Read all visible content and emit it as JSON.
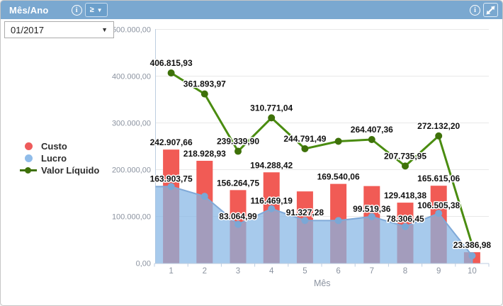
{
  "header": {
    "title": "Mês/Ano",
    "info_glyph": "i",
    "operator_button": {
      "operator": "≥",
      "caret": "▼"
    }
  },
  "filter": {
    "value": "01/2017",
    "caret": "▼"
  },
  "legend": {
    "items": [
      {
        "label": "Custo",
        "color": "#ee5b5b",
        "marker": "circle"
      },
      {
        "label": "Lucro",
        "color": "#90bce9",
        "marker": "circle"
      },
      {
        "label": "Valor Líquido",
        "color": "#3e7109",
        "marker": "line-dot"
      }
    ]
  },
  "colors": {
    "header_bg": "#7aa8d0",
    "bar": "#f15b55",
    "area_fill": "rgba(133,181,228,0.72)",
    "area_stroke": "#7fa9d8",
    "area_dot": "#7aa8d6",
    "line": "#4a8c10",
    "line_dot": "#3e7109",
    "grid": "#e8e8e8",
    "axis": "#bccde0",
    "axis_text": "#8b93a0",
    "label_text": "#111111"
  },
  "chart_data": {
    "type": "bar",
    "subtype": "combo-bar-area-line",
    "categories": [
      "1",
      "2",
      "3",
      "4",
      "5",
      "6",
      "7",
      "8",
      "9",
      "10"
    ],
    "xlabel": "Mês",
    "ylabel": "",
    "ylim": [
      0,
      500000
    ],
    "grid": true,
    "legend_position": "left-middle",
    "y_tick_labels": [
      "0,00",
      "100.000,00",
      "200.000,00",
      "300.000,00",
      "400.000,00",
      "500.000,00"
    ],
    "series": [
      {
        "name": "Custo",
        "type": "bar",
        "values": [
          242907.66,
          218928.93,
          156264.75,
          194288.42,
          153464.21,
          169540.06,
          164888.0,
          129418.38,
          165615.06,
          23386.98
        ],
        "labels": [
          "242.907,66",
          "218.928,93",
          "156.264,75",
          "194.288,42",
          null,
          "169.540,06",
          null,
          "129.418,38",
          "165.615,06",
          "23.386,98"
        ]
      },
      {
        "name": "Lucro",
        "type": "area",
        "values": [
          163903.75,
          142965.04,
          83064.99,
          116469.19,
          91327.28,
          91060.0,
          99519.36,
          78306.45,
          106505.38,
          16000.0
        ],
        "labels": [
          "163.903,75",
          null,
          "83.064,99",
          "116.469,19",
          "91.327,28",
          null,
          "99.519,36",
          "78.306,45",
          "106.505,38",
          null
        ]
      },
      {
        "name": "Valor Líquido",
        "type": "line",
        "values": [
          406815.93,
          361893.97,
          239339.9,
          310771.04,
          244791.49,
          260600.0,
          264407.36,
          207735.95,
          272132.2,
          39400.0
        ],
        "labels": [
          "406.815,93",
          "361.893,97",
          "239.339,90",
          "310.771,04",
          "244.791,49",
          null,
          "264.407,36",
          "207.735,95",
          "272.132,20",
          null
        ]
      }
    ]
  }
}
